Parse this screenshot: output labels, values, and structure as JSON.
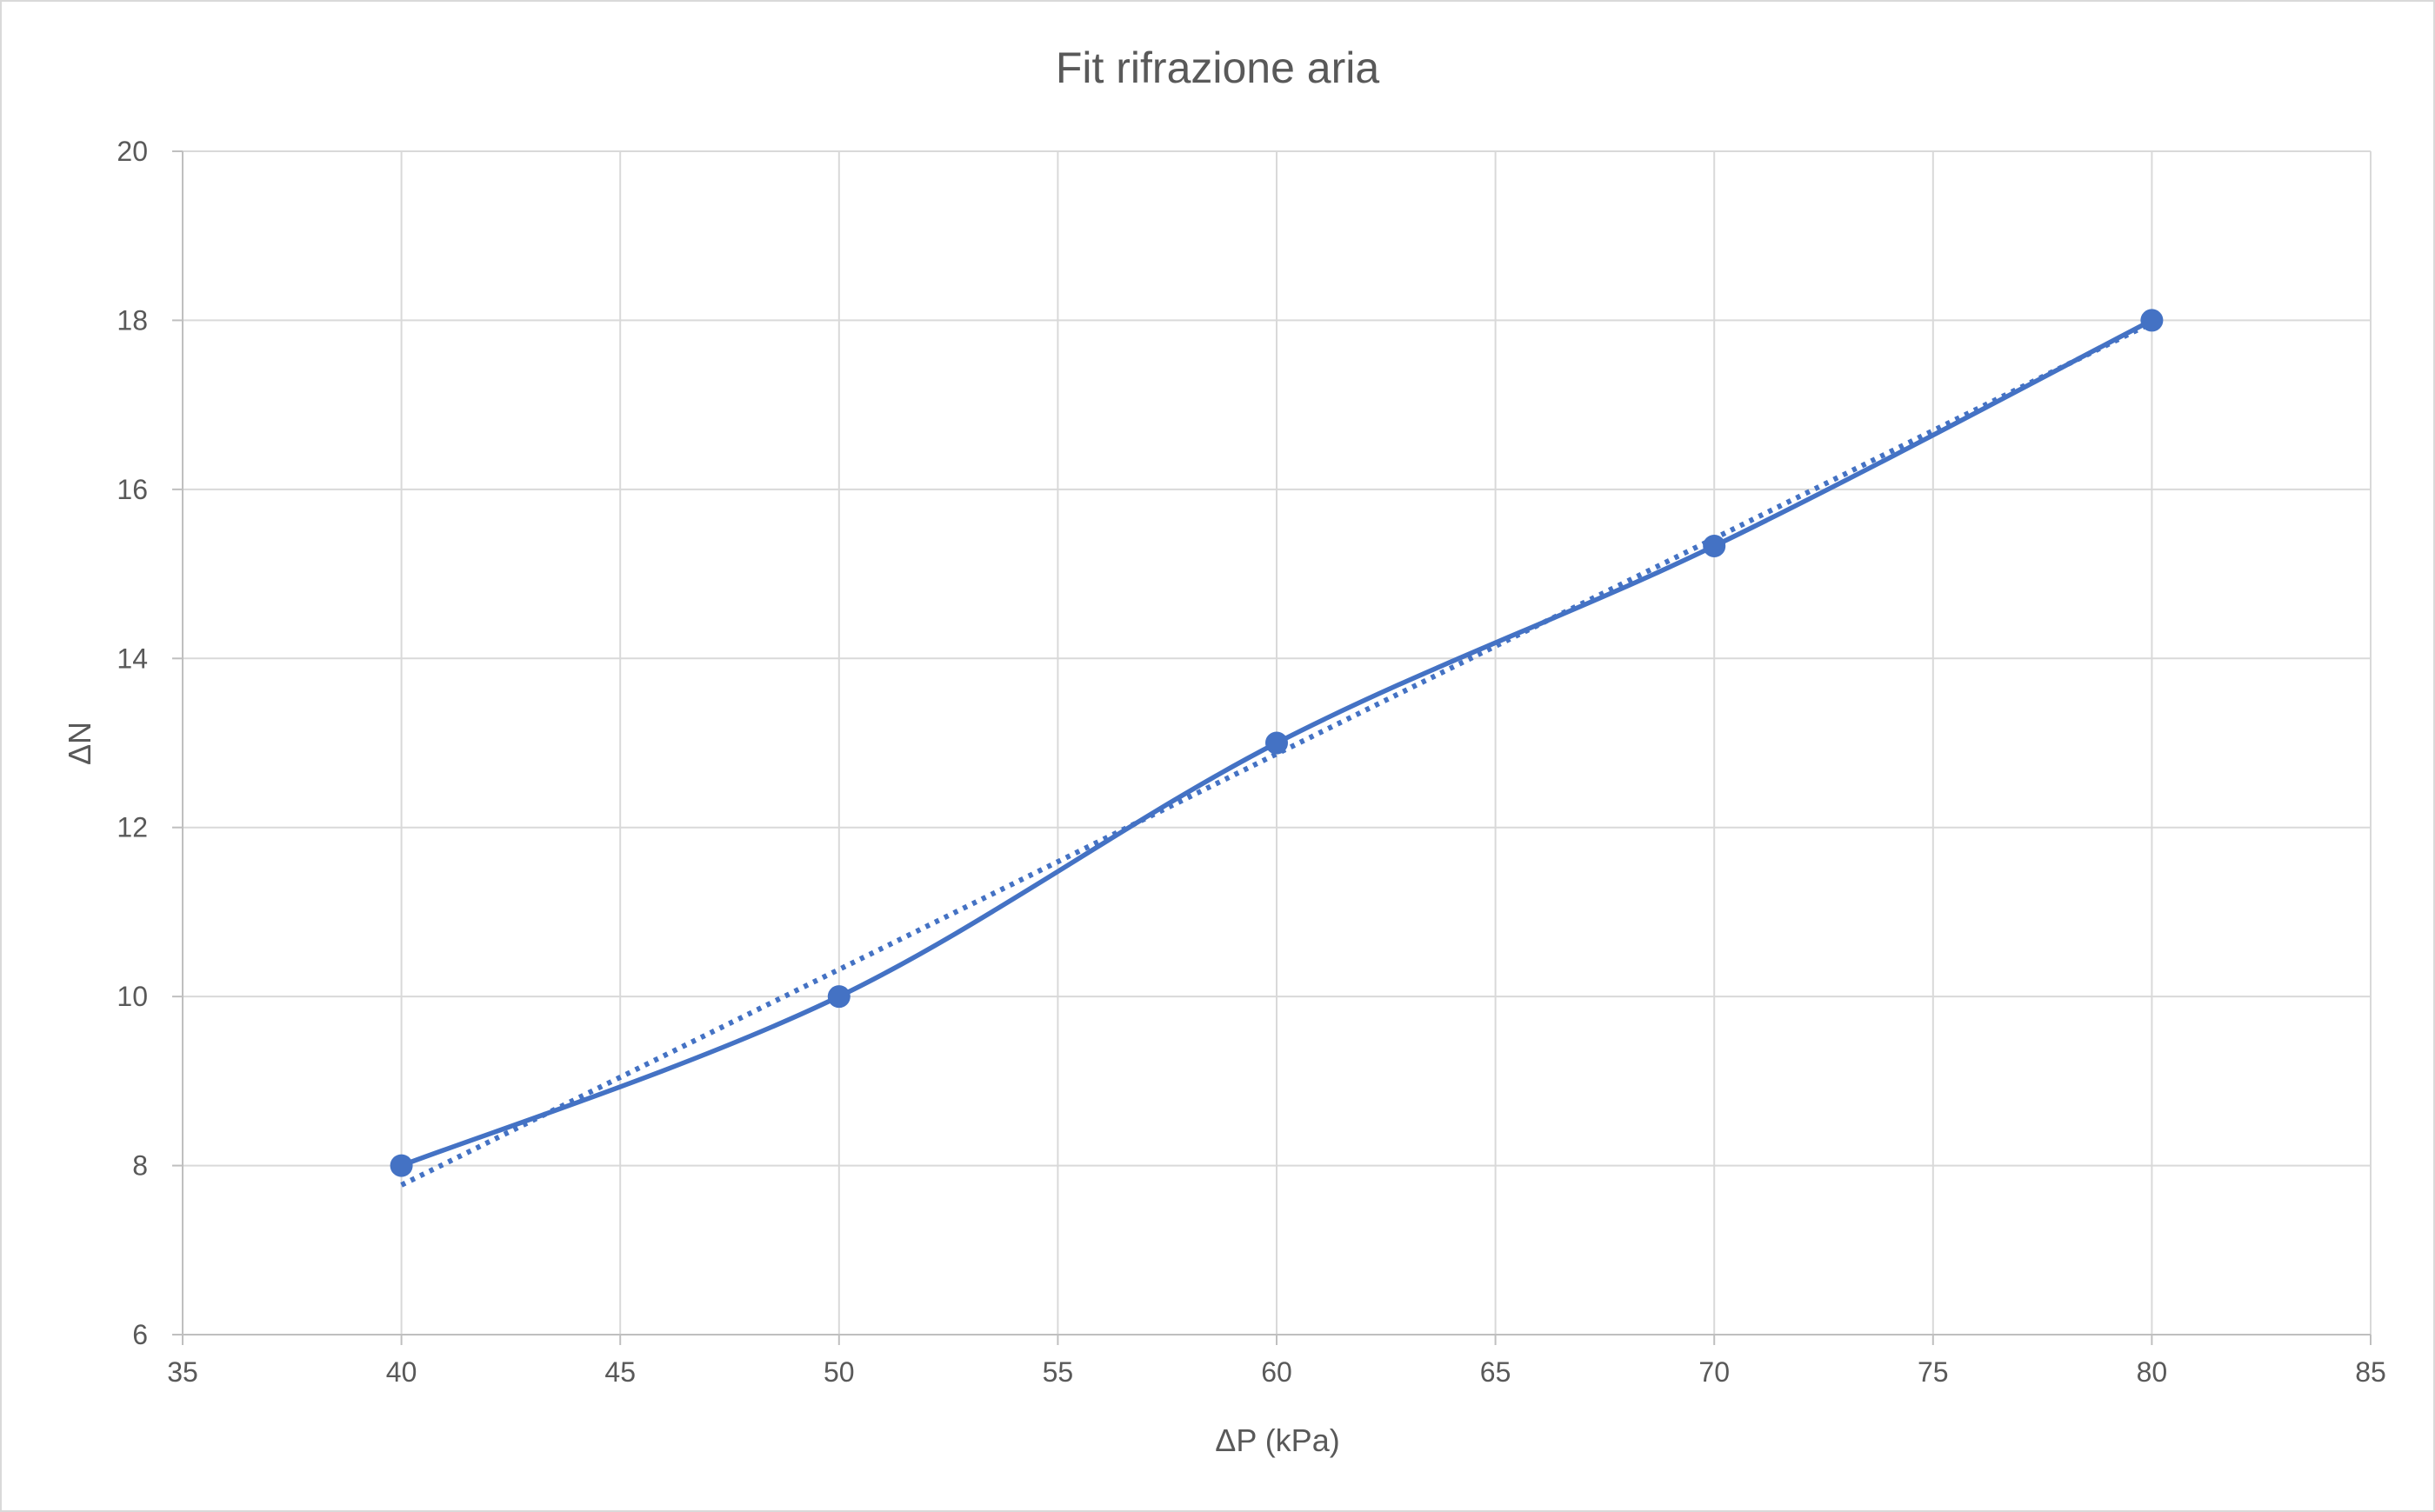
{
  "colors": {
    "series": "#4472c4",
    "grid": "#d9d9d9",
    "axis": "#bfbfbf",
    "text": "#595959",
    "frame_border": "#d9d9d9"
  },
  "chart_data": {
    "type": "scatter",
    "title": "Fit rifrazione aria",
    "xlabel": "ΔP (kPa)",
    "ylabel": "ΔN",
    "xlim": [
      35,
      85
    ],
    "ylim": [
      6,
      20
    ],
    "x_ticks": [
      35,
      40,
      45,
      50,
      55,
      60,
      65,
      70,
      75,
      80,
      85
    ],
    "y_ticks": [
      6,
      8,
      10,
      12,
      14,
      16,
      18,
      20
    ],
    "grid": true,
    "legend": "none",
    "series": [
      {
        "style": "smoothed line with markers",
        "x": [
          40,
          50,
          60,
          70,
          80
        ],
        "y": [
          8,
          10,
          13,
          15.33,
          18
        ]
      }
    ],
    "trendline": {
      "type": "linear",
      "style": "dotted",
      "x": [
        40,
        80
      ],
      "y": [
        7.77,
        17.97
      ]
    }
  }
}
